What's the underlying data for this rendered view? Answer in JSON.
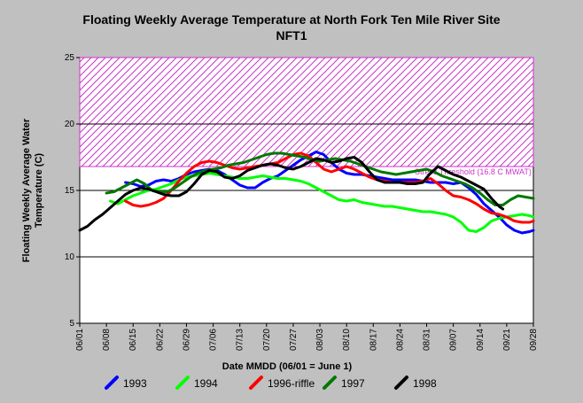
{
  "chart_data": {
    "type": "line",
    "title": "Floating Weekly Average Temperature at North Fork Ten Mile River Site",
    "subtitle": "NFT1",
    "xlabel": "Date MMDD (06/01 = June 1)",
    "ylabel_line1": "Floating Weekly Average Water",
    "ylabel_line2": "Temperature (C)",
    "ylim": [
      5,
      25
    ],
    "xlim": [
      0,
      119
    ],
    "yticks": [
      "5",
      "10",
      "15",
      "20",
      "25"
    ],
    "ytick_values": [
      5,
      10,
      15,
      20,
      25
    ],
    "xtick_labels": [
      "06/01",
      "06/08",
      "06/15",
      "06/22",
      "06/29",
      "07/06",
      "07/13",
      "07/20",
      "07/27",
      "08/03",
      "08/10",
      "08/17",
      "08/24",
      "08/31",
      "09/07",
      "09/14",
      "09/21",
      "09/28"
    ],
    "gridlines_y": [
      10,
      15,
      20
    ],
    "stress_zone": {
      "from": 16.8,
      "to": 25,
      "label": "Stress Threshold (16.8 C MWAT)"
    },
    "legend": {
      "placement": "bottom"
    },
    "series": [
      {
        "name": "1993",
        "color": "#0000ff",
        "points": [
          [
            12,
            15.6
          ],
          [
            14,
            15.5
          ],
          [
            16,
            15.3
          ],
          [
            18,
            15.4
          ],
          [
            20,
            15.7
          ],
          [
            22,
            15.8
          ],
          [
            24,
            15.7
          ],
          [
            26,
            15.9
          ],
          [
            28,
            16.2
          ],
          [
            30,
            16.4
          ],
          [
            32,
            16.5
          ],
          [
            34,
            16.6
          ],
          [
            36,
            16.5
          ],
          [
            38,
            16.2
          ],
          [
            40,
            15.8
          ],
          [
            42,
            15.4
          ],
          [
            44,
            15.2
          ],
          [
            46,
            15.2
          ],
          [
            48,
            15.6
          ],
          [
            50,
            15.9
          ],
          [
            52,
            16.1
          ],
          [
            54,
            16.5
          ],
          [
            56,
            16.9
          ],
          [
            58,
            17.3
          ],
          [
            60,
            17.6
          ],
          [
            62,
            17.9
          ],
          [
            64,
            17.7
          ],
          [
            66,
            17.1
          ],
          [
            68,
            16.6
          ],
          [
            70,
            16.3
          ],
          [
            72,
            16.2
          ],
          [
            74,
            16.2
          ],
          [
            76,
            16.1
          ],
          [
            78,
            16.0
          ],
          [
            80,
            15.9
          ],
          [
            82,
            15.8
          ],
          [
            84,
            15.8
          ],
          [
            86,
            15.8
          ],
          [
            88,
            15.8
          ],
          [
            90,
            15.7
          ],
          [
            92,
            15.6
          ],
          [
            94,
            15.6
          ],
          [
            96,
            15.6
          ],
          [
            98,
            15.5
          ],
          [
            100,
            15.6
          ],
          [
            102,
            15.2
          ],
          [
            104,
            14.7
          ],
          [
            106,
            14.0
          ],
          [
            108,
            13.5
          ],
          [
            110,
            13.0
          ],
          [
            112,
            12.4
          ],
          [
            114,
            12.0
          ],
          [
            116,
            11.8
          ],
          [
            118,
            11.9
          ],
          [
            119,
            12.0
          ]
        ]
      },
      {
        "name": "1994",
        "color": "#00ff00",
        "points": [
          [
            8,
            14.2
          ],
          [
            10,
            14.0
          ],
          [
            12,
            14.3
          ],
          [
            14,
            14.6
          ],
          [
            16,
            14.8
          ],
          [
            18,
            15.0
          ],
          [
            20,
            15.1
          ],
          [
            22,
            15.3
          ],
          [
            24,
            15.5
          ],
          [
            26,
            15.8
          ],
          [
            28,
            16.0
          ],
          [
            30,
            16.1
          ],
          [
            32,
            16.2
          ],
          [
            34,
            16.3
          ],
          [
            36,
            16.2
          ],
          [
            38,
            16.1
          ],
          [
            40,
            16.0
          ],
          [
            42,
            15.9
          ],
          [
            44,
            15.9
          ],
          [
            46,
            16.0
          ],
          [
            48,
            16.1
          ],
          [
            50,
            16.0
          ],
          [
            52,
            15.9
          ],
          [
            54,
            15.9
          ],
          [
            56,
            15.8
          ],
          [
            58,
            15.7
          ],
          [
            60,
            15.5
          ],
          [
            62,
            15.2
          ],
          [
            64,
            14.9
          ],
          [
            66,
            14.6
          ],
          [
            68,
            14.3
          ],
          [
            70,
            14.2
          ],
          [
            72,
            14.3
          ],
          [
            74,
            14.1
          ],
          [
            76,
            14.0
          ],
          [
            78,
            13.9
          ],
          [
            80,
            13.8
          ],
          [
            82,
            13.8
          ],
          [
            84,
            13.7
          ],
          [
            86,
            13.6
          ],
          [
            88,
            13.5
          ],
          [
            90,
            13.4
          ],
          [
            92,
            13.4
          ],
          [
            94,
            13.3
          ],
          [
            96,
            13.2
          ],
          [
            98,
            13.0
          ],
          [
            100,
            12.6
          ],
          [
            102,
            12.0
          ],
          [
            104,
            11.9
          ],
          [
            106,
            12.2
          ],
          [
            108,
            12.7
          ],
          [
            110,
            12.9
          ],
          [
            112,
            13.0
          ],
          [
            114,
            13.1
          ],
          [
            116,
            13.2
          ],
          [
            118,
            13.1
          ],
          [
            119,
            13.0
          ]
        ]
      },
      {
        "name": "1996-riffle",
        "color": "#ff0000",
        "points": [
          [
            12,
            14.2
          ],
          [
            14,
            13.9
          ],
          [
            16,
            13.8
          ],
          [
            18,
            13.9
          ],
          [
            20,
            14.1
          ],
          [
            22,
            14.4
          ],
          [
            24,
            15.0
          ],
          [
            26,
            15.7
          ],
          [
            28,
            16.3
          ],
          [
            30,
            16.8
          ],
          [
            32,
            17.1
          ],
          [
            34,
            17.2
          ],
          [
            36,
            17.1
          ],
          [
            38,
            16.9
          ],
          [
            40,
            16.7
          ],
          [
            42,
            16.6
          ],
          [
            44,
            16.7
          ],
          [
            46,
            16.8
          ],
          [
            48,
            16.9
          ],
          [
            50,
            17.0
          ],
          [
            52,
            17.1
          ],
          [
            54,
            17.4
          ],
          [
            56,
            17.7
          ],
          [
            58,
            17.8
          ],
          [
            60,
            17.6
          ],
          [
            62,
            17.1
          ],
          [
            64,
            16.6
          ],
          [
            66,
            16.4
          ],
          [
            68,
            16.6
          ],
          [
            70,
            16.8
          ],
          [
            72,
            16.6
          ],
          [
            74,
            16.3
          ],
          [
            76,
            16.0
          ],
          [
            78,
            15.8
          ],
          [
            80,
            15.7
          ],
          [
            82,
            15.6
          ],
          [
            84,
            15.6
          ],
          [
            86,
            15.6
          ],
          [
            88,
            15.6
          ],
          [
            90,
            15.7
          ],
          [
            92,
            15.9
          ],
          [
            94,
            15.5
          ],
          [
            96,
            15.0
          ],
          [
            98,
            14.6
          ],
          [
            100,
            14.5
          ],
          [
            102,
            14.3
          ],
          [
            104,
            14.0
          ],
          [
            106,
            13.6
          ],
          [
            108,
            13.3
          ],
          [
            110,
            13.2
          ],
          [
            112,
            13.0
          ],
          [
            114,
            12.7
          ],
          [
            116,
            12.6
          ],
          [
            118,
            12.6
          ],
          [
            119,
            12.7
          ]
        ]
      },
      {
        "name": "1997",
        "color": "#007800",
        "points": [
          [
            7,
            14.8
          ],
          [
            9,
            14.9
          ],
          [
            11,
            15.2
          ],
          [
            13,
            15.5
          ],
          [
            15,
            15.8
          ],
          [
            17,
            15.5
          ],
          [
            19,
            15.0
          ],
          [
            21,
            14.9
          ],
          [
            23,
            14.9
          ],
          [
            25,
            15.2
          ],
          [
            27,
            15.6
          ],
          [
            29,
            16.0
          ],
          [
            31,
            16.3
          ],
          [
            33,
            16.5
          ],
          [
            35,
            16.6
          ],
          [
            37,
            16.7
          ],
          [
            39,
            16.9
          ],
          [
            41,
            17.0
          ],
          [
            43,
            17.1
          ],
          [
            45,
            17.3
          ],
          [
            47,
            17.5
          ],
          [
            49,
            17.7
          ],
          [
            51,
            17.8
          ],
          [
            53,
            17.8
          ],
          [
            55,
            17.7
          ],
          [
            57,
            17.6
          ],
          [
            59,
            17.5
          ],
          [
            61,
            17.3
          ],
          [
            63,
            17.2
          ],
          [
            65,
            17.3
          ],
          [
            67,
            17.4
          ],
          [
            69,
            17.3
          ],
          [
            71,
            17.2
          ],
          [
            73,
            17.0
          ],
          [
            75,
            16.8
          ],
          [
            77,
            16.6
          ],
          [
            79,
            16.4
          ],
          [
            81,
            16.3
          ],
          [
            83,
            16.2
          ],
          [
            85,
            16.3
          ],
          [
            87,
            16.4
          ],
          [
            89,
            16.5
          ],
          [
            91,
            16.6
          ],
          [
            93,
            16.4
          ],
          [
            95,
            16.1
          ],
          [
            97,
            15.9
          ],
          [
            99,
            15.7
          ],
          [
            101,
            15.5
          ],
          [
            103,
            15.2
          ],
          [
            105,
            14.8
          ],
          [
            107,
            14.3
          ],
          [
            109,
            13.9
          ],
          [
            111,
            13.9
          ],
          [
            113,
            14.3
          ],
          [
            115,
            14.6
          ],
          [
            117,
            14.5
          ],
          [
            119,
            14.4
          ]
        ]
      },
      {
        "name": "1998",
        "color": "#000000",
        "points": [
          [
            0,
            12.0
          ],
          [
            2,
            12.3
          ],
          [
            4,
            12.8
          ],
          [
            6,
            13.2
          ],
          [
            8,
            13.7
          ],
          [
            10,
            14.2
          ],
          [
            12,
            14.7
          ],
          [
            14,
            15.0
          ],
          [
            16,
            15.2
          ],
          [
            18,
            15.1
          ],
          [
            20,
            14.9
          ],
          [
            22,
            14.7
          ],
          [
            24,
            14.6
          ],
          [
            26,
            14.6
          ],
          [
            28,
            14.9
          ],
          [
            30,
            15.5
          ],
          [
            32,
            16.2
          ],
          [
            34,
            16.5
          ],
          [
            36,
            16.4
          ],
          [
            38,
            16.0
          ],
          [
            40,
            15.9
          ],
          [
            42,
            16.1
          ],
          [
            44,
            16.5
          ],
          [
            46,
            16.7
          ],
          [
            48,
            16.9
          ],
          [
            50,
            17.0
          ],
          [
            52,
            16.9
          ],
          [
            54,
            16.7
          ],
          [
            56,
            16.6
          ],
          [
            58,
            16.8
          ],
          [
            60,
            17.1
          ],
          [
            62,
            17.4
          ],
          [
            64,
            17.3
          ],
          [
            66,
            17.1
          ],
          [
            68,
            17.2
          ],
          [
            70,
            17.4
          ],
          [
            72,
            17.5
          ],
          [
            74,
            17.1
          ],
          [
            76,
            16.4
          ],
          [
            78,
            15.8
          ],
          [
            80,
            15.6
          ],
          [
            82,
            15.6
          ],
          [
            84,
            15.6
          ],
          [
            86,
            15.5
          ],
          [
            88,
            15.5
          ],
          [
            90,
            15.6
          ],
          [
            92,
            16.3
          ],
          [
            94,
            16.8
          ],
          [
            96,
            16.5
          ],
          [
            98,
            16.2
          ],
          [
            100,
            16.0
          ],
          [
            102,
            15.7
          ],
          [
            104,
            15.4
          ],
          [
            106,
            15.1
          ],
          [
            108,
            14.4
          ],
          [
            110,
            13.8
          ],
          [
            111,
            13.6
          ]
        ]
      }
    ]
  }
}
